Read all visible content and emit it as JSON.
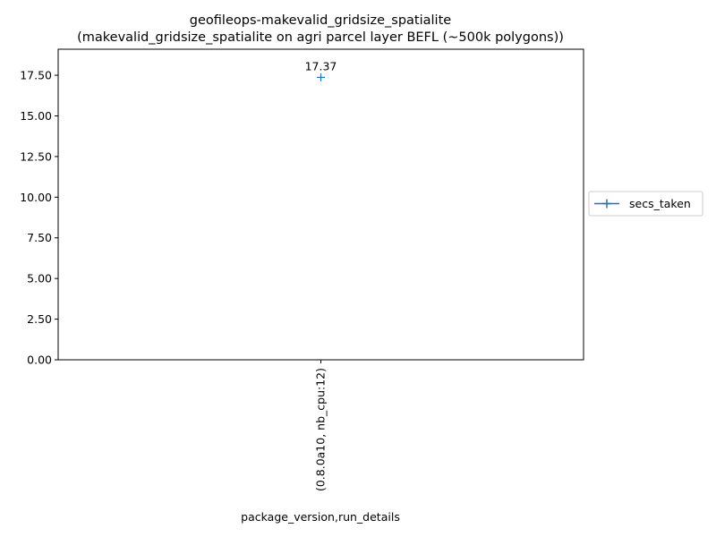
{
  "chart_data": {
    "type": "line",
    "title": "geofileops-makevalid_gridsize_spatialite",
    "subtitle": "(makevalid_gridsize_spatialite on agri parcel layer BEFL (~500k polygons))",
    "xlabel": "package_version,run_details",
    "ylabel": "",
    "categories": [
      "(0.8.0a10, nb_cpu:12)"
    ],
    "series": [
      {
        "name": "secs_taken",
        "values": [
          17.37
        ],
        "color": "#1f77b4",
        "marker": "plus"
      }
    ],
    "data_labels": [
      "17.37"
    ],
    "yticks": [
      "0.00",
      "2.50",
      "5.00",
      "7.50",
      "10.00",
      "12.50",
      "15.00",
      "17.50"
    ],
    "ylim": [
      0,
      19.1
    ],
    "grid": false,
    "legend_position": "outside-right"
  }
}
